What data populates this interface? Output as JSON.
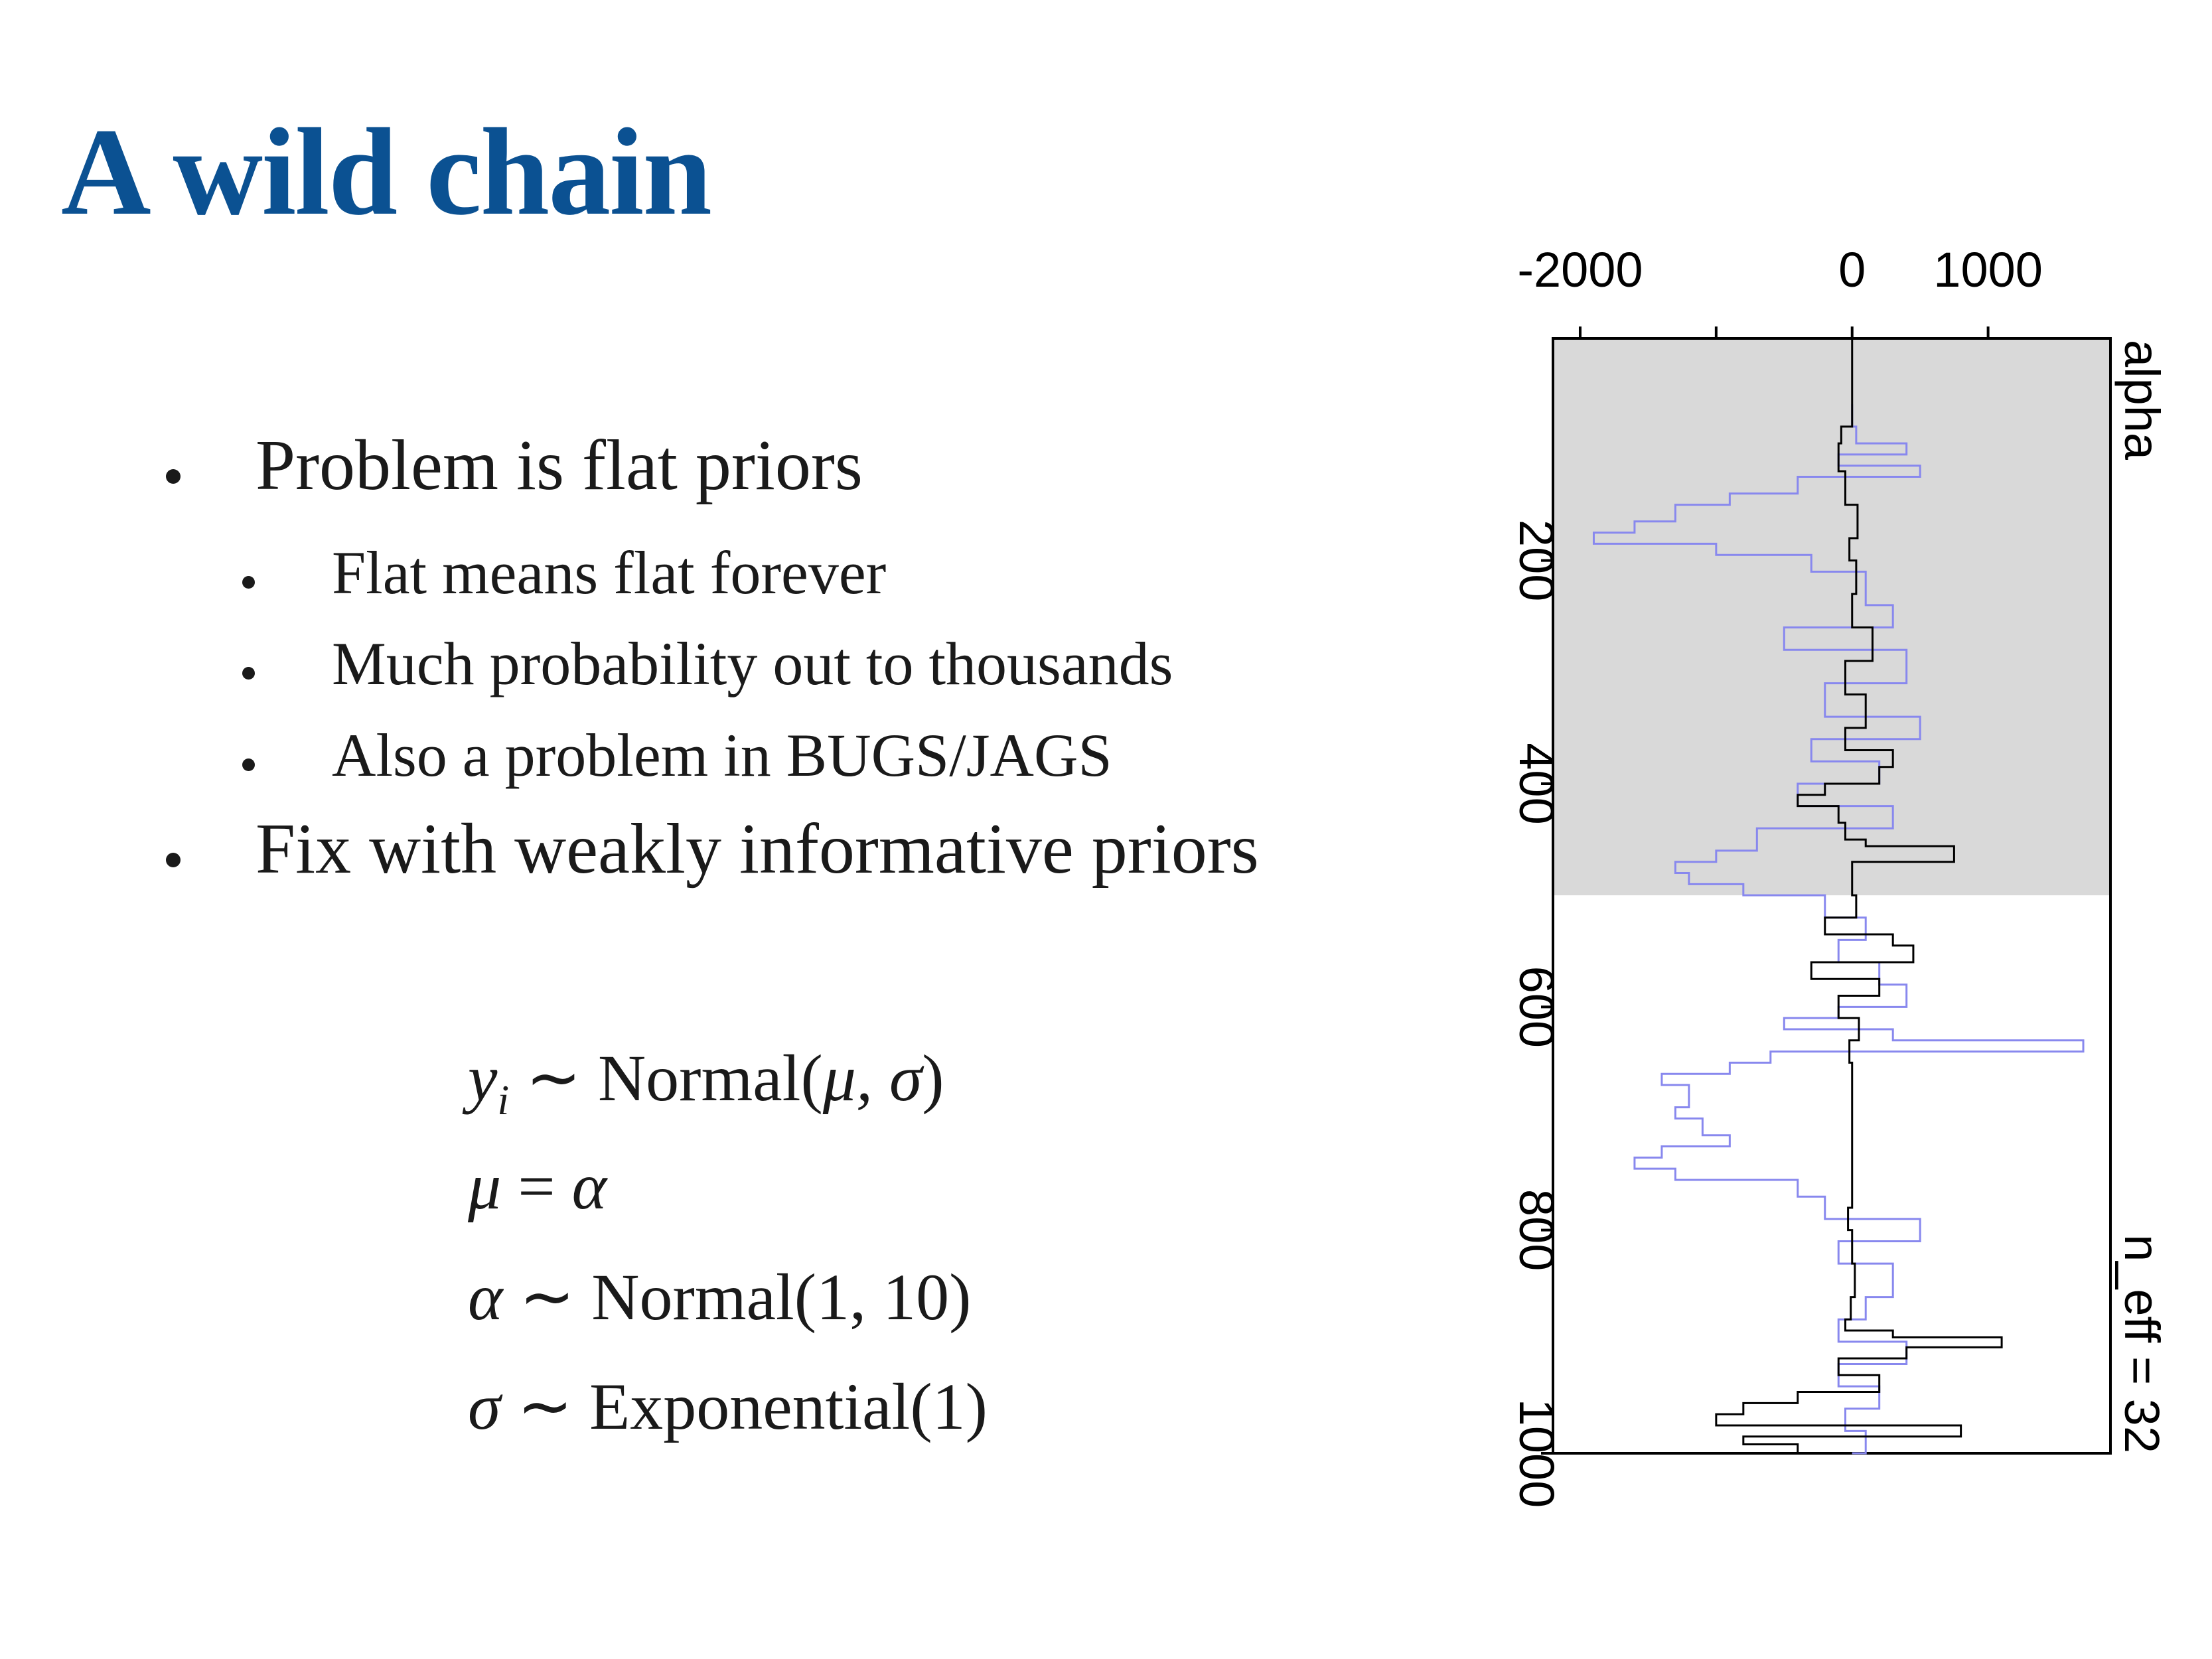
{
  "slide": {
    "title": "A wild chain",
    "bullets": [
      {
        "text": "Problem is flat priors",
        "level": 1
      },
      {
        "text": "Flat means flat forever",
        "level": 2
      },
      {
        "text": "Much probability out to thousands",
        "level": 2
      },
      {
        "text": "Also a problem in BUGS/JAGS",
        "level": 2
      },
      {
        "text": "Fix with weakly informative priors",
        "level": 1
      }
    ],
    "equations": {
      "e1": {
        "lhs": "y",
        "sub": "i",
        "op": "∼",
        "rhs": "Normal(",
        "args": "μ, σ",
        "close": ")"
      },
      "e2": {
        "lhs": "μ",
        "op": "=",
        "rhs": "α"
      },
      "e3": {
        "lhs": "α",
        "op": "∼",
        "rhs": "Normal(1, 10)"
      },
      "e4": {
        "lhs": "σ",
        "op": "∼",
        "rhs": "Exponential(1)"
      }
    }
  },
  "chart_data": {
    "type": "line",
    "orientation": "rotated-90",
    "series_label": "alpha",
    "annotation": "n_eff = 32",
    "iteration_axis": {
      "ticks": [
        "200",
        "400",
        "600",
        "800",
        "1000"
      ],
      "range": [
        1,
        1000
      ]
    },
    "value_axis": {
      "ticks": [
        "-2000",
        "0",
        "1000"
      ],
      "range": [
        -2200,
        1900
      ]
    },
    "warmup_end": 500,
    "colors": {
      "warmup_shade": "#d9d9d9",
      "chain_1": "#8888ee",
      "chain_2": "#000000",
      "axis": "#000000"
    },
    "series": [
      {
        "chain": 1,
        "color": "#8888ee",
        "points": [
          [
            60,
            0
          ],
          [
            80,
            30
          ],
          [
            95,
            400
          ],
          [
            105,
            -100
          ],
          [
            115,
            500
          ],
          [
            125,
            -400
          ],
          [
            140,
            -900
          ],
          [
            150,
            -1300
          ],
          [
            165,
            -1600
          ],
          [
            175,
            -1900
          ],
          [
            185,
            -1000
          ],
          [
            195,
            -300
          ],
          [
            210,
            100
          ],
          [
            240,
            300
          ],
          [
            260,
            -500
          ],
          [
            280,
            400
          ],
          [
            310,
            -200
          ],
          [
            340,
            500
          ],
          [
            360,
            -300
          ],
          [
            380,
            200
          ],
          [
            400,
            -400
          ],
          [
            420,
            300
          ],
          [
            440,
            -700
          ],
          [
            460,
            -1000
          ],
          [
            470,
            -1300
          ],
          [
            480,
            -1200
          ],
          [
            490,
            -800
          ],
          [
            500,
            -200
          ],
          [
            520,
            100
          ],
          [
            540,
            -100
          ],
          [
            560,
            200
          ],
          [
            580,
            400
          ],
          [
            600,
            -100
          ],
          [
            610,
            -500
          ],
          [
            620,
            300
          ],
          [
            630,
            1700
          ],
          [
            640,
            -600
          ],
          [
            650,
            -900
          ],
          [
            660,
            -1400
          ],
          [
            670,
            -1200
          ],
          [
            690,
            -1300
          ],
          [
            700,
            -1100
          ],
          [
            715,
            -900
          ],
          [
            725,
            -1400
          ],
          [
            735,
            -1600
          ],
          [
            745,
            -1300
          ],
          [
            755,
            -400
          ],
          [
            770,
            -200
          ],
          [
            790,
            500
          ],
          [
            810,
            -100
          ],
          [
            830,
            300
          ],
          [
            860,
            100
          ],
          [
            880,
            -100
          ],
          [
            900,
            400
          ],
          [
            920,
            -100
          ],
          [
            940,
            200
          ],
          [
            960,
            -50
          ],
          [
            980,
            100
          ],
          [
            1000,
            0
          ]
        ]
      },
      {
        "chain": 2,
        "color": "#000000",
        "points": [
          [
            1,
            0
          ],
          [
            60,
            0
          ],
          [
            80,
            -80
          ],
          [
            95,
            -100
          ],
          [
            120,
            -50
          ],
          [
            150,
            40
          ],
          [
            180,
            -20
          ],
          [
            200,
            30
          ],
          [
            230,
            0
          ],
          [
            260,
            150
          ],
          [
            290,
            -50
          ],
          [
            320,
            100
          ],
          [
            350,
            -50
          ],
          [
            370,
            300
          ],
          [
            385,
            200
          ],
          [
            400,
            -200
          ],
          [
            410,
            -400
          ],
          [
            420,
            -100
          ],
          [
            435,
            -50
          ],
          [
            450,
            100
          ],
          [
            456,
            750
          ],
          [
            470,
            0
          ],
          [
            500,
            30
          ],
          [
            520,
            -200
          ],
          [
            535,
            300
          ],
          [
            545,
            450
          ],
          [
            560,
            -300
          ],
          [
            575,
            200
          ],
          [
            590,
            -100
          ],
          [
            610,
            50
          ],
          [
            630,
            -20
          ],
          [
            650,
            0
          ],
          [
            700,
            0
          ],
          [
            750,
            0
          ],
          [
            780,
            -30
          ],
          [
            800,
            0
          ],
          [
            830,
            20
          ],
          [
            860,
            -10
          ],
          [
            880,
            -50
          ],
          [
            890,
            300
          ],
          [
            896,
            1100
          ],
          [
            905,
            400
          ],
          [
            915,
            -100
          ],
          [
            930,
            200
          ],
          [
            945,
            -400
          ],
          [
            955,
            -800
          ],
          [
            965,
            -1000
          ],
          [
            975,
            800
          ],
          [
            985,
            -800
          ],
          [
            992,
            -400
          ],
          [
            1000,
            -200
          ]
        ]
      }
    ]
  }
}
